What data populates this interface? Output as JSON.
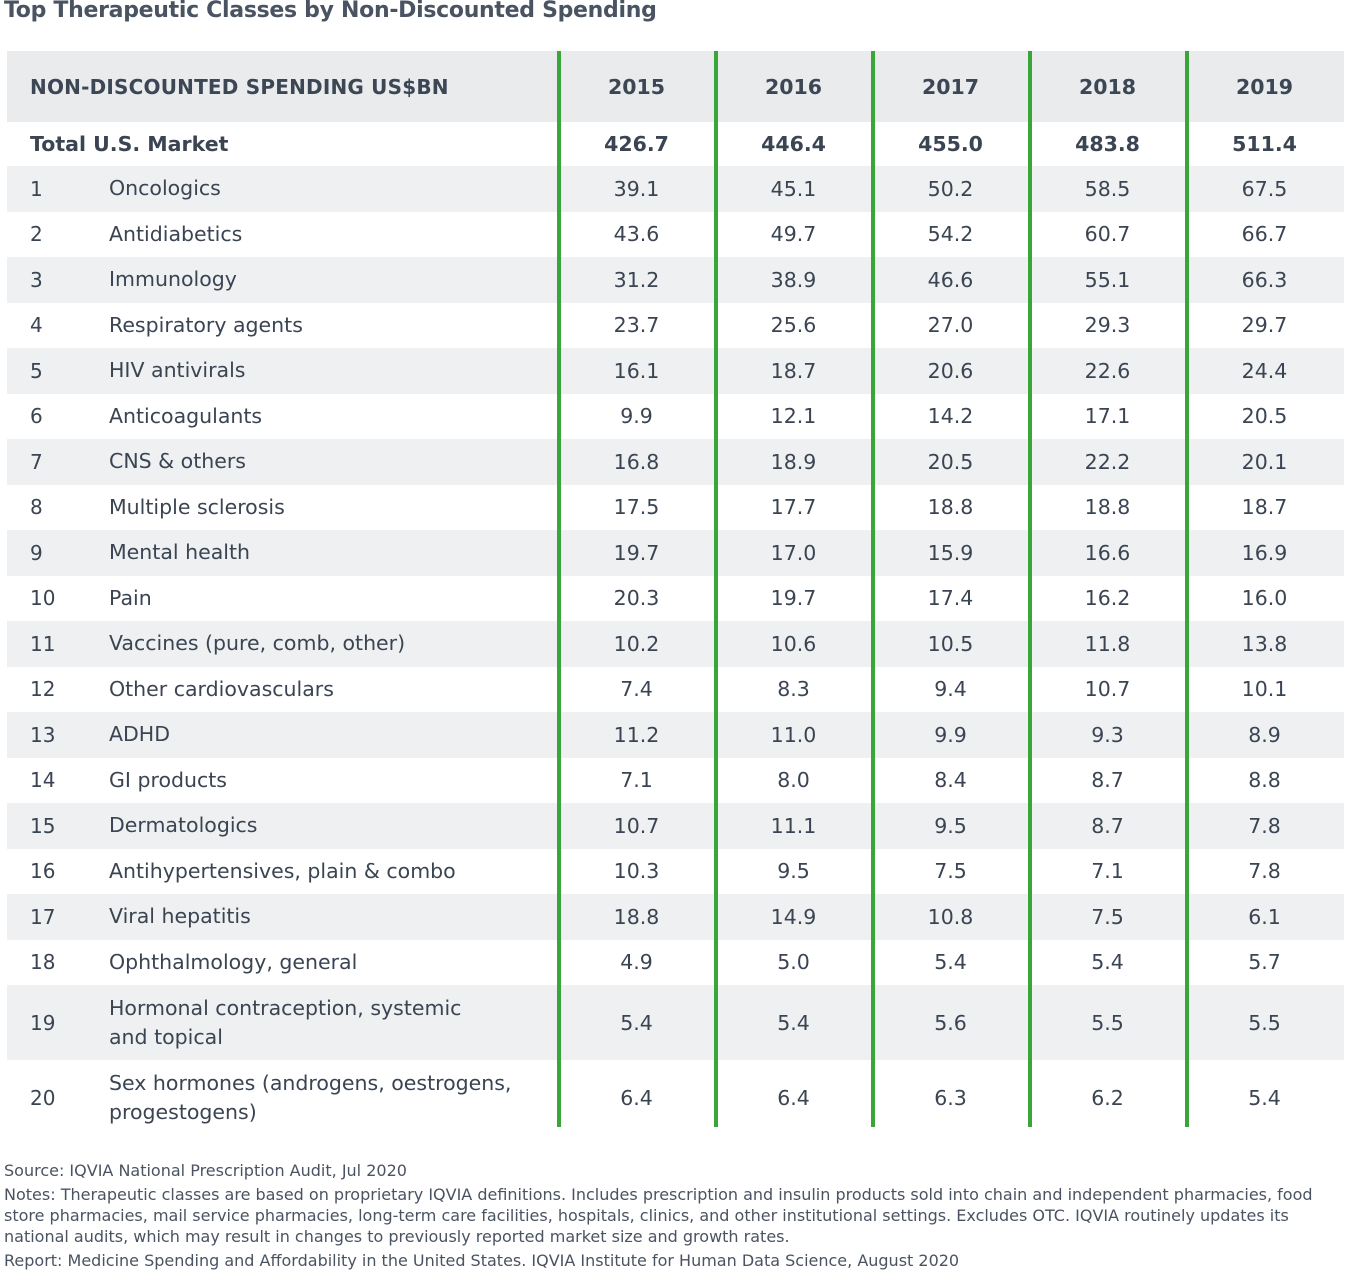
{
  "title": "Top Therapeutic Classes by Non-Discounted Spending",
  "header": {
    "label": "NON-DISCOUNTED SPENDING US$BN",
    "years": [
      "2015",
      "2016",
      "2017",
      "2018",
      "2019"
    ]
  },
  "total": {
    "label": "Total U.S. Market",
    "values": [
      "426.7",
      "446.4",
      "455.0",
      "483.8",
      "511.4"
    ]
  },
  "rows": [
    {
      "rank": "1",
      "name": "Oncologics",
      "values": [
        "39.1",
        "45.1",
        "50.2",
        "58.5",
        "67.5"
      ]
    },
    {
      "rank": "2",
      "name": "Antidiabetics",
      "values": [
        "43.6",
        "49.7",
        "54.2",
        "60.7",
        "66.7"
      ]
    },
    {
      "rank": "3",
      "name": "Immunology",
      "values": [
        "31.2",
        "38.9",
        "46.6",
        "55.1",
        "66.3"
      ]
    },
    {
      "rank": "4",
      "name": "Respiratory agents",
      "values": [
        "23.7",
        "25.6",
        "27.0",
        "29.3",
        "29.7"
      ]
    },
    {
      "rank": "5",
      "name": "HIV antivirals",
      "values": [
        "16.1",
        "18.7",
        "20.6",
        "22.6",
        "24.4"
      ]
    },
    {
      "rank": "6",
      "name": "Anticoagulants",
      "values": [
        "9.9",
        "12.1",
        "14.2",
        "17.1",
        "20.5"
      ]
    },
    {
      "rank": "7",
      "name": "CNS & others",
      "values": [
        "16.8",
        "18.9",
        "20.5",
        "22.2",
        "20.1"
      ]
    },
    {
      "rank": "8",
      "name": "Multiple sclerosis",
      "values": [
        "17.5",
        "17.7",
        "18.8",
        "18.8",
        "18.7"
      ]
    },
    {
      "rank": "9",
      "name": "Mental health",
      "values": [
        "19.7",
        "17.0",
        "15.9",
        "16.6",
        "16.9"
      ]
    },
    {
      "rank": "10",
      "name": "Pain",
      "values": [
        "20.3",
        "19.7",
        "17.4",
        "16.2",
        "16.0"
      ]
    },
    {
      "rank": "11",
      "name": "Vaccines (pure, comb, other)",
      "values": [
        "10.2",
        "10.6",
        "10.5",
        "11.8",
        "13.8"
      ]
    },
    {
      "rank": "12",
      "name": "Other cardiovasculars",
      "values": [
        "7.4",
        "8.3",
        "9.4",
        "10.7",
        "10.1"
      ]
    },
    {
      "rank": "13",
      "name": "ADHD",
      "values": [
        "11.2",
        "11.0",
        "9.9",
        "9.3",
        "8.9"
      ]
    },
    {
      "rank": "14",
      "name": "GI products",
      "values": [
        "7.1",
        "8.0",
        "8.4",
        "8.7",
        "8.8"
      ]
    },
    {
      "rank": "15",
      "name": "Dermatologics",
      "values": [
        "10.7",
        "11.1",
        "9.5",
        "8.7",
        "7.8"
      ]
    },
    {
      "rank": "16",
      "name": "Antihypertensives, plain & combo",
      "values": [
        "10.3",
        "9.5",
        "7.5",
        "7.1",
        "7.8"
      ]
    },
    {
      "rank": "17",
      "name": "Viral hepatitis",
      "values": [
        "18.8",
        "14.9",
        "10.8",
        "7.5",
        "6.1"
      ]
    },
    {
      "rank": "18",
      "name": "Ophthalmology, general",
      "values": [
        "4.9",
        "5.0",
        "5.4",
        "5.4",
        "5.7"
      ]
    },
    {
      "rank": "19",
      "name": "Hormonal contraception, systemic",
      "name2": "and topical",
      "values": [
        "5.4",
        "5.4",
        "5.6",
        "5.5",
        "5.5"
      ]
    },
    {
      "rank": "20",
      "name": "Sex hormones (androgens, oestrogens,",
      "name2": "progestogens)",
      "values": [
        "6.4",
        "6.4",
        "6.3",
        "6.2",
        "5.4"
      ]
    }
  ],
  "notes": {
    "source": "Source: IQVIA National Prescription Audit, Jul 2020",
    "notes": "Notes: Therapeutic classes are based on proprietary IQVIA definitions. Includes prescription and insulin products sold into chain and independent pharmacies, food store pharmacies, mail service pharmacies, long-term care facilities, hospitals, clinics, and other institutional settings. Excludes OTC. IQVIA routinely updates its national audits, which may result in changes to previously reported market size and growth rates.",
    "report": "Report: Medicine Spending and Affordability in the United States. IQVIA Institute for Human Data Science, August 2020"
  },
  "colors": {
    "accent": "#3aa63a",
    "header_bg": "#e9ebed",
    "stripe_bg": "#eef0f1",
    "text": "#3a4452"
  }
}
